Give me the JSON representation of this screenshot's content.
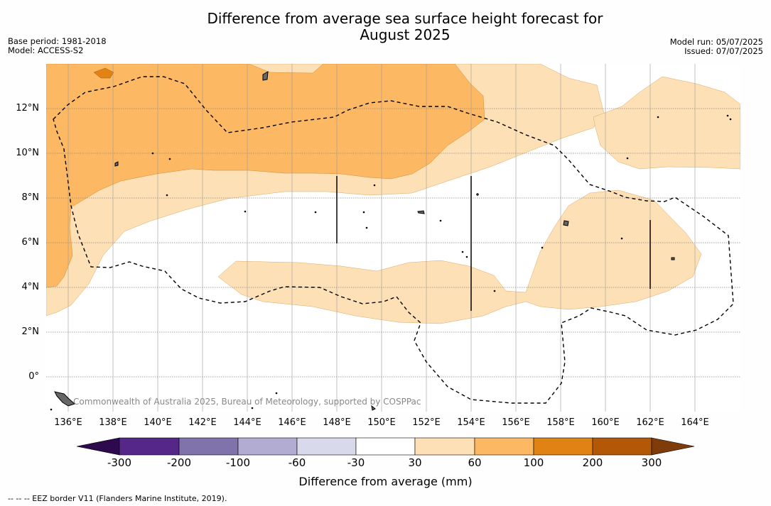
{
  "title_line1": "Difference from average sea surface height forecast for",
  "title_line2": "August 2025",
  "base_period": "Base period: 1981-2018",
  "model": "Model: ACCESS-S2",
  "model_run": "Model run: 05/07/2025",
  "issued": "Issued: 07/07/2025",
  "lat_labels": [
    "12°N",
    "10°N",
    "8°N",
    "6°N",
    "4°N",
    "2°N",
    "0°"
  ],
  "lon_labels": [
    "136°E",
    "138°E",
    "140°E",
    "142°E",
    "144°E",
    "146°E",
    "148°E",
    "150°E",
    "152°E",
    "154°E",
    "156°E",
    "158°E",
    "160°E",
    "162°E",
    "164°E"
  ],
  "copyright": "Commonwealth of Australia 2025, Bureau of Meteorology, supported by COSPPac",
  "colorbar": {
    "ticks": [
      "-300",
      "-200",
      "-100",
      "-60",
      "-30",
      "30",
      "60",
      "100",
      "200",
      "300"
    ],
    "title": "Difference from average (mm)",
    "colors": {
      "below": "#2d0a4e",
      "c1": "#542788",
      "c2": "#8073ac",
      "c3": "#b2abd2",
      "c4": "#d8daeb",
      "c5": "#ffffff",
      "c6": "#fee0b6",
      "c7": "#fdb863",
      "c8": "#e08214",
      "c9": "#b35806",
      "above": "#7f3b08"
    }
  },
  "footer": "--  --  -- EEZ border V11 (Flanders Marine Institute, 2019)."
}
